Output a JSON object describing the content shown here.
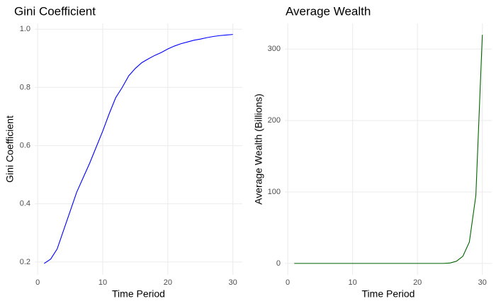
{
  "chart_data": [
    {
      "type": "line",
      "title": "Gini Coefficient",
      "x_label": "Time Period",
      "y_label": "Gini Coefficient",
      "x": [
        1,
        2,
        3,
        4,
        5,
        6,
        7,
        8,
        9,
        10,
        11,
        12,
        13,
        14,
        15,
        16,
        17,
        18,
        19,
        20,
        21,
        22,
        23,
        24,
        25,
        26,
        27,
        28,
        29,
        30
      ],
      "values": [
        0.195,
        0.21,
        0.245,
        0.31,
        0.375,
        0.44,
        0.49,
        0.54,
        0.595,
        0.65,
        0.71,
        0.765,
        0.8,
        0.84,
        0.865,
        0.885,
        0.898,
        0.91,
        0.92,
        0.932,
        0.942,
        0.95,
        0.956,
        0.962,
        0.966,
        0.971,
        0.975,
        0.978,
        0.98,
        0.982
      ],
      "color": "#0000ff",
      "xlim": [
        -0.45,
        31.45
      ],
      "ylim": [
        0.156,
        1.02
      ],
      "xticks": [
        0,
        10,
        20,
        30
      ],
      "yticks": [
        0.2,
        0.4,
        0.6,
        0.8,
        {
          "value": 1,
          "label": "1.0"
        }
      ],
      "grid": true
    },
    {
      "type": "line",
      "title": "Average Wealth",
      "x_label": "Time Period",
      "y_label": "Average Wealth (Billions)",
      "x": [
        1,
        2,
        3,
        4,
        5,
        6,
        7,
        8,
        9,
        10,
        11,
        12,
        13,
        14,
        15,
        16,
        17,
        18,
        19,
        20,
        21,
        22,
        23,
        24,
        25,
        26,
        27,
        28,
        29,
        30
      ],
      "values": [
        0,
        0,
        0,
        0,
        0,
        0,
        0,
        0,
        0,
        0,
        0,
        0,
        0,
        0,
        0,
        0,
        0,
        0,
        0,
        0,
        0,
        0,
        0,
        0,
        0.5,
        3,
        10,
        30,
        95,
        320
      ],
      "color": "#006400",
      "xlim": [
        -0.45,
        31.45
      ],
      "ylim": [
        -16,
        336
      ],
      "xticks": [
        0,
        10,
        20,
        30
      ],
      "yticks": [
        0,
        100,
        200,
        300
      ],
      "grid": true
    }
  ]
}
